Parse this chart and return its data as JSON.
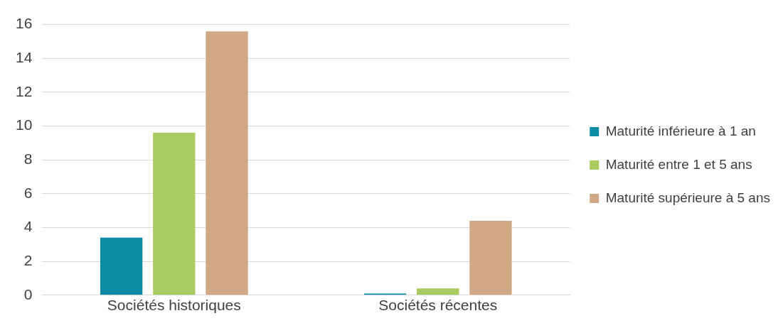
{
  "chart_data": {
    "type": "bar",
    "categories": [
      "Sociétés historiques",
      "Sociétés récentes"
    ],
    "series": [
      {
        "name": "Maturité inférieure à 1 an",
        "color": "#0e8ca6",
        "values": [
          3.4,
          0.1
        ]
      },
      {
        "name": "Maturité entre 1 et 5 ans",
        "color": "#a9cb5f",
        "values": [
          9.6,
          0.4
        ]
      },
      {
        "name": "Maturité supérieure à 5 ans",
        "color": "#d1a886",
        "values": [
          15.6,
          4.4
        ]
      }
    ],
    "ylim": [
      0,
      16
    ],
    "yticks": [
      0,
      2,
      4,
      6,
      8,
      10,
      12,
      14,
      16
    ],
    "grid": "y",
    "legend": "right"
  }
}
